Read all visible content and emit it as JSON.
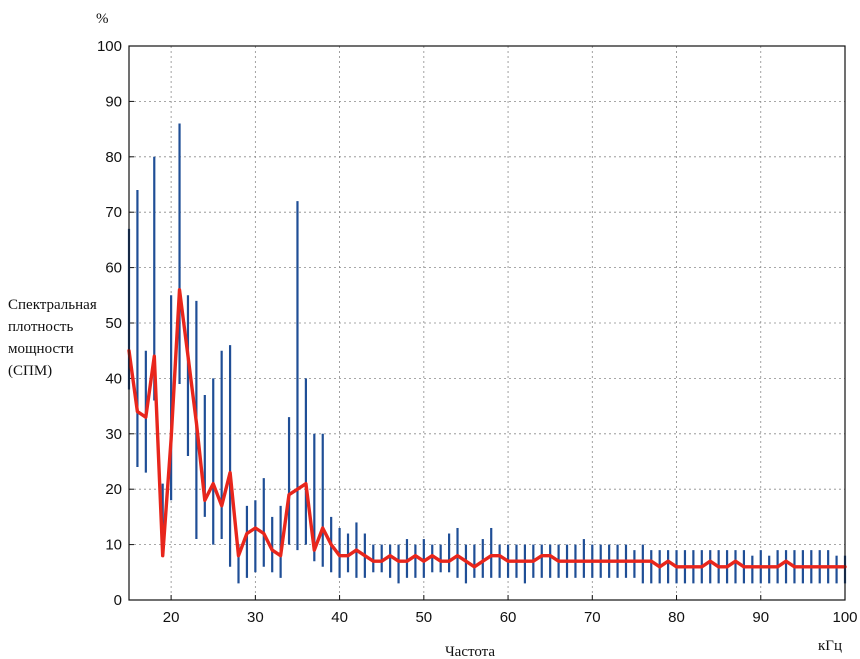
{
  "chart_data": {
    "type": "line",
    "xlabel": "Частота",
    "xunit": "кГц",
    "yunit": "%",
    "ylabel_lines": [
      "Спектральная",
      "плотность",
      "мощности",
      "(СПМ)"
    ],
    "xlim": [
      15,
      100
    ],
    "ylim": [
      0,
      100
    ],
    "x_ticks": [
      20,
      30,
      40,
      50,
      60,
      70,
      80,
      90,
      100
    ],
    "y_ticks": [
      0,
      10,
      20,
      30,
      40,
      50,
      60,
      70,
      80,
      90,
      100
    ],
    "grid": true,
    "colors": {
      "range": "#1f4e96",
      "mean": "#e8261c",
      "grid": "#8a8a8a"
    },
    "series": [
      {
        "type": "errorbar",
        "x": [
          15,
          16,
          17,
          18,
          19,
          20,
          21,
          22,
          23,
          24,
          25,
          26,
          27,
          28,
          29,
          30,
          31,
          32,
          33,
          34,
          35,
          36,
          37,
          38,
          39,
          40,
          41,
          42,
          43,
          44,
          45,
          46,
          47,
          48,
          49,
          50,
          51,
          52,
          53,
          54,
          55,
          56,
          57,
          58,
          59,
          60,
          61,
          62,
          63,
          64,
          65,
          66,
          67,
          68,
          69,
          70,
          71,
          72,
          73,
          74,
          75,
          76,
          77,
          78,
          79,
          80,
          81,
          82,
          83,
          84,
          85,
          86,
          87,
          88,
          89,
          90,
          91,
          92,
          93,
          94,
          95,
          96,
          97,
          98,
          99,
          100
        ],
        "low": [
          38,
          24,
          23,
          36,
          8,
          18,
          39,
          26,
          11,
          15,
          10,
          11,
          6,
          3,
          4,
          5,
          6,
          5,
          4,
          10,
          9,
          10,
          7,
          6,
          5,
          4,
          5,
          4,
          4,
          5,
          5,
          4,
          3,
          4,
          4,
          4,
          5,
          5,
          5,
          4,
          3,
          4,
          4,
          4,
          4,
          4,
          4,
          3,
          4,
          4,
          4,
          4,
          4,
          4,
          4,
          4,
          4,
          4,
          4,
          4,
          4,
          3,
          3,
          3,
          3,
          3,
          3,
          3,
          3,
          3,
          3,
          3,
          3,
          3,
          3,
          3,
          3,
          3,
          3,
          3,
          3,
          3,
          3,
          3,
          3,
          3
        ],
        "high": [
          67,
          74,
          45,
          80,
          21,
          55,
          86,
          55,
          54,
          37,
          40,
          45,
          46,
          10,
          17,
          18,
          22,
          15,
          17,
          33,
          72,
          40,
          30,
          30,
          15,
          13,
          12,
          14,
          12,
          10,
          10,
          10,
          10,
          11,
          10,
          11,
          10,
          10,
          12,
          13,
          10,
          10,
          11,
          13,
          10,
          10,
          10,
          10,
          10,
          10,
          10,
          10,
          10,
          10,
          11,
          10,
          10,
          10,
          10,
          10,
          9,
          10,
          9,
          9,
          9,
          9,
          9,
          9,
          9,
          9,
          9,
          9,
          9,
          9,
          8,
          9,
          8,
          9,
          9,
          9,
          9,
          9,
          9,
          9,
          8,
          8
        ]
      },
      {
        "type": "line",
        "x": [
          15,
          16,
          17,
          18,
          19,
          20,
          21,
          22,
          23,
          24,
          25,
          26,
          27,
          28,
          29,
          30,
          31,
          32,
          33,
          34,
          35,
          36,
          37,
          38,
          39,
          40,
          41,
          42,
          43,
          44,
          45,
          46,
          47,
          48,
          49,
          50,
          51,
          52,
          53,
          54,
          55,
          56,
          57,
          58,
          59,
          60,
          61,
          62,
          63,
          64,
          65,
          66,
          67,
          68,
          69,
          70,
          71,
          72,
          73,
          74,
          75,
          76,
          77,
          78,
          79,
          80,
          81,
          82,
          83,
          84,
          85,
          86,
          87,
          88,
          89,
          90,
          91,
          92,
          93,
          94,
          95,
          96,
          97,
          98,
          99,
          100
        ],
        "y": [
          45,
          34,
          33,
          44,
          8,
          29,
          56,
          44,
          32,
          18,
          21,
          17,
          23,
          8,
          12,
          13,
          12,
          9,
          8,
          19,
          20,
          21,
          9,
          13,
          10,
          8,
          8,
          9,
          8,
          7,
          7,
          8,
          7,
          7,
          8,
          7,
          8,
          7,
          7,
          8,
          7,
          6,
          7,
          8,
          8,
          7,
          7,
          7,
          7,
          8,
          8,
          7,
          7,
          7,
          7,
          7,
          7,
          7,
          7,
          7,
          7,
          7,
          7,
          6,
          7,
          6,
          6,
          6,
          6,
          7,
          6,
          6,
          7,
          6,
          6,
          6,
          6,
          6,
          7,
          6,
          6,
          6,
          6,
          6,
          6,
          6
        ]
      }
    ]
  }
}
